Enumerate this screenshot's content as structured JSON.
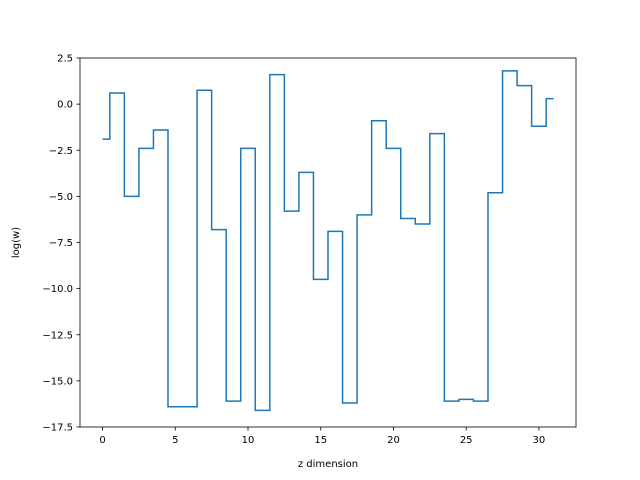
{
  "chart_data": {
    "type": "line",
    "drawstyle": "steps-mid",
    "title": "",
    "xlabel": "z dimension",
    "ylabel": "log(w)",
    "xlim": [
      -1.55,
      32.55
    ],
    "ylim": [
      -17.5,
      2.5
    ],
    "xticks": [
      0,
      5,
      10,
      15,
      20,
      25,
      30
    ],
    "yticks": [
      -17.5,
      -15.0,
      -12.5,
      -10.0,
      -7.5,
      -5.0,
      -2.5,
      0.0,
      2.5
    ],
    "grid": false,
    "legend": "none",
    "line_color": "#1f77b4",
    "series": [
      {
        "x": [
          0,
          1,
          2,
          3,
          4,
          5,
          6,
          7,
          8,
          9,
          10,
          11,
          12,
          13,
          14,
          15,
          16,
          17,
          18,
          19,
          20,
          21,
          22,
          23,
          24,
          25,
          26,
          27,
          28,
          29,
          30,
          31
        ],
        "values": [
          -1.9,
          0.6,
          -5.0,
          -2.4,
          -1.4,
          -16.4,
          -16.4,
          0.75,
          -6.8,
          -16.1,
          -2.4,
          -16.6,
          1.6,
          -5.8,
          -3.7,
          -9.5,
          -6.9,
          -16.2,
          -6.0,
          -0.9,
          -2.4,
          -6.2,
          -6.5,
          -1.6,
          -16.1,
          -16.0,
          -16.1,
          -4.8,
          1.8,
          1.0,
          -1.2,
          0.3
        ]
      }
    ]
  }
}
